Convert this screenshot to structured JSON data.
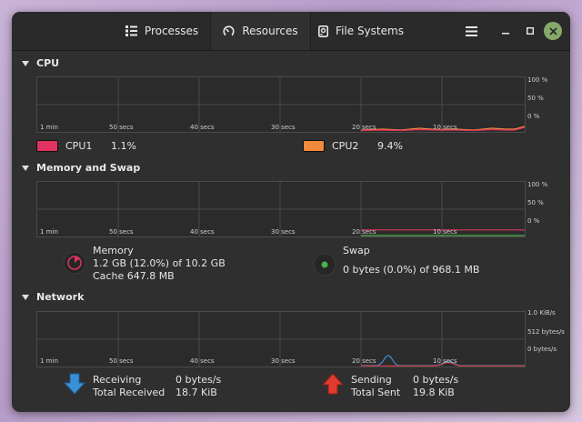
{
  "tabs": [
    {
      "label": "Processes",
      "icon": "list-icon"
    },
    {
      "label": "Resources",
      "icon": "gauge-icon"
    },
    {
      "label": "File Systems",
      "icon": "disk-icon"
    }
  ],
  "active_tab": "Resources",
  "window_controls": [
    "menu-icon",
    "minimize-icon",
    "maximize-icon",
    "close-icon"
  ],
  "x_ticks": [
    "1 min",
    "50 secs",
    "40 secs",
    "30 secs",
    "20 secs",
    "10 secs"
  ],
  "cpu": {
    "title": "CPU",
    "y_ticks": [
      "100 %",
      "50 %",
      "0 %"
    ],
    "cpus": [
      {
        "name": "CPU1",
        "value": "1.1%",
        "color": "#e0335f"
      },
      {
        "name": "CPU2",
        "value": "9.4%",
        "color": "#f08a3c"
      }
    ]
  },
  "memory": {
    "title": "Memory and Swap",
    "y_ticks": [
      "100 %",
      "50 %",
      "0 %"
    ],
    "memory_label": "Memory",
    "memory_usage": "1.2 GB (12.0%) of 10.2 GB",
    "cache": "Cache 647.8 MB",
    "memory_color": "#e0335f",
    "swap_label": "Swap",
    "swap_usage": "0 bytes (0.0%) of 968.1 MB",
    "swap_color": "#4caf50"
  },
  "network": {
    "title": "Network",
    "y_ticks": [
      "1.0 KiB/s",
      "512 bytes/s",
      "0 bytes/s"
    ],
    "receiving_label": "Receiving",
    "receiving_value": "0 bytes/s",
    "total_received_label": "Total Received",
    "total_received_value": "18.7 KiB",
    "sending_label": "Sending",
    "sending_value": "0 bytes/s",
    "total_sent_label": "Total Sent",
    "total_sent_value": "19.8 KiB",
    "receive_color": "#3b8fd6",
    "send_color": "#d63b3b"
  }
}
